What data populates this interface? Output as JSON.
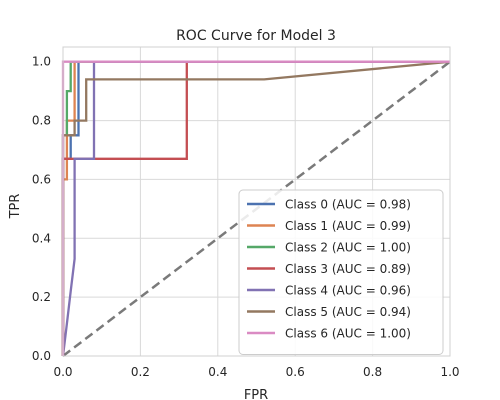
{
  "chart_data": {
    "type": "line",
    "title": "ROC Curve for Model 3",
    "xlabel": "FPR",
    "ylabel": "TPR",
    "xlim": [
      0,
      1
    ],
    "ylim": [
      0,
      1.05
    ],
    "xticks": [
      "0.0",
      "0.2",
      "0.4",
      "0.6",
      "0.8",
      "1.0"
    ],
    "yticks": [
      "0.0",
      "0.2",
      "0.4",
      "0.6",
      "0.8",
      "1.0"
    ],
    "grid": true,
    "legend_position": "lower-right",
    "diagonal": {
      "x": [
        0,
        1
      ],
      "y": [
        0,
        1
      ],
      "style": "dashed",
      "color": "#7a7a7a"
    },
    "series": [
      {
        "name": "Class 0 (AUC = 0.98)",
        "color": "#4c72b0",
        "x": [
          0,
          0,
          0.02,
          0.02,
          0.04,
          0.04,
          1
        ],
        "y": [
          0,
          0.67,
          0.67,
          0.75,
          0.75,
          1.0,
          1.0
        ]
      },
      {
        "name": "Class 1 (AUC = 0.99)",
        "color": "#dd8452",
        "x": [
          0,
          0,
          0.01,
          0.01,
          0.03,
          0.03,
          1
        ],
        "y": [
          0,
          0.6,
          0.6,
          0.8,
          0.8,
          1.0,
          1.0
        ]
      },
      {
        "name": "Class 2 (AUC = 1.00)",
        "color": "#55a868",
        "x": [
          0,
          0,
          0.01,
          0.01,
          0.02,
          0.02,
          1
        ],
        "y": [
          0,
          0.75,
          0.75,
          0.9,
          0.9,
          1.0,
          1.0
        ]
      },
      {
        "name": "Class 3 (AUC = 0.89)",
        "color": "#c44e52",
        "x": [
          0,
          0,
          0.32,
          0.32,
          1
        ],
        "y": [
          0,
          0.67,
          0.67,
          1.0,
          1.0
        ]
      },
      {
        "name": "Class 4 (AUC = 0.96)",
        "color": "#8172b3",
        "x": [
          0,
          0.01,
          0.02,
          0.03,
          0.03,
          0.08,
          0.08,
          1
        ],
        "y": [
          0,
          0.11,
          0.22,
          0.33,
          0.67,
          0.67,
          1.0,
          1.0
        ]
      },
      {
        "name": "Class 5 (AUC = 0.94)",
        "color": "#937860",
        "x": [
          0,
          0,
          0.03,
          0.03,
          0.06,
          0.06,
          0.52,
          1
        ],
        "y": [
          0,
          0.75,
          0.75,
          0.8,
          0.8,
          0.94,
          0.94,
          1.0
        ]
      },
      {
        "name": "Class 6 (AUC = 1.00)",
        "color": "#da8bc3",
        "x": [
          0,
          0,
          1
        ],
        "y": [
          0,
          1.0,
          1.0
        ]
      }
    ]
  }
}
